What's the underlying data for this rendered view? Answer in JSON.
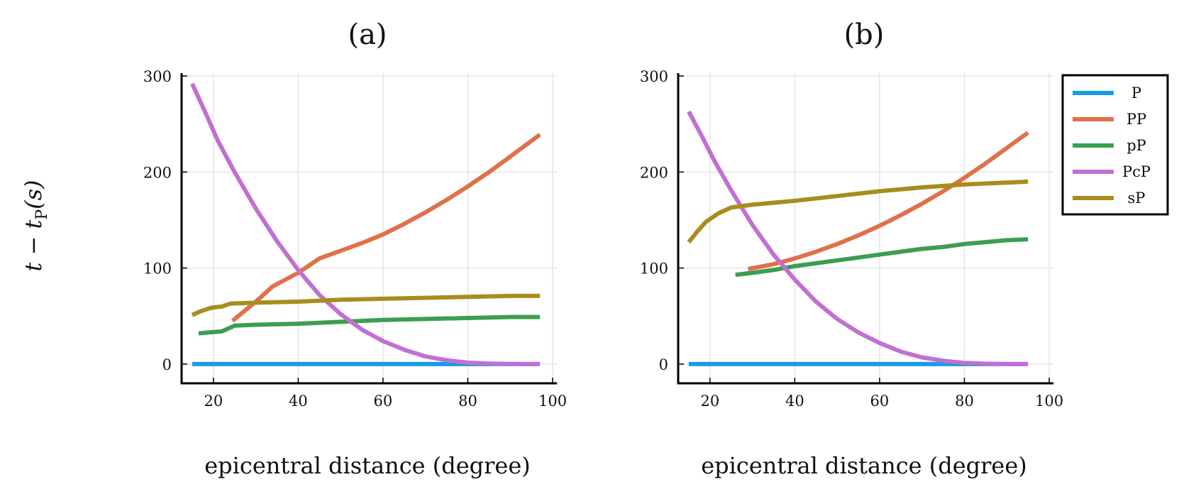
{
  "figure": {
    "ylabel": "t − t",
    "ylabel_sub": "P",
    "ylabel_suffix": "(s)"
  },
  "chart_data": [
    {
      "type": "line",
      "title": "(a)",
      "xlabel": "epicentral distance (degree)",
      "xlim": [
        12.5,
        101
      ],
      "ylim": [
        -20,
        303
      ],
      "xticks": [
        20,
        40,
        60,
        80,
        100
      ],
      "yticks": [
        0,
        100,
        200,
        300
      ],
      "grid": true,
      "legend": null,
      "series": [
        {
          "name": "P",
          "color": "#179ce9",
          "x": [
            15,
            97
          ],
          "y": [
            0,
            0
          ]
        },
        {
          "name": "PP",
          "color": "#e1704a",
          "x": [
            24.5,
            30,
            34,
            40,
            45,
            50,
            55,
            60,
            65,
            70,
            75,
            80,
            85,
            90,
            97
          ],
          "y": [
            45,
            65,
            81,
            95,
            110,
            118,
            126,
            135,
            146,
            158,
            171,
            185,
            200,
            216,
            239
          ]
        },
        {
          "name": "pP",
          "color": "#3c9e4f",
          "x": [
            16.5,
            19,
            22,
            25,
            30,
            40,
            50,
            60,
            70,
            80,
            90,
            97
          ],
          "y": [
            32,
            33,
            34,
            40,
            41,
            42,
            44,
            46,
            47,
            48,
            49,
            49
          ]
        },
        {
          "name": "PcP",
          "color": "#c170d2",
          "x": [
            15,
            18,
            21,
            25,
            30,
            35,
            40,
            45,
            50,
            55,
            60,
            65,
            70,
            75,
            80,
            85,
            90,
            95,
            97
          ],
          "y": [
            292,
            263,
            233,
            200,
            162,
            128,
            98,
            72,
            52,
            36,
            24,
            15,
            8,
            4,
            1.5,
            0.6,
            0.2,
            0,
            0
          ]
        },
        {
          "name": "sP",
          "color": "#a88d1d",
          "x": [
            15,
            17,
            19,
            20,
            22,
            24,
            30,
            40,
            50,
            60,
            70,
            80,
            90,
            97
          ],
          "y": [
            51,
            55,
            58,
            59,
            60,
            63,
            64,
            65,
            67,
            68,
            69,
            70,
            71,
            71
          ]
        }
      ]
    },
    {
      "type": "line",
      "title": "(b)",
      "xlabel": "epicentral distance (degree)",
      "xlim": [
        12.5,
        101
      ],
      "ylim": [
        -20,
        303
      ],
      "xticks": [
        20,
        40,
        60,
        80,
        100
      ],
      "yticks": [
        0,
        100,
        200,
        300
      ],
      "grid": true,
      "legend": "top-right",
      "series": [
        {
          "name": "P",
          "color": "#179ce9",
          "x": [
            15,
            95
          ],
          "y": [
            0,
            0
          ]
        },
        {
          "name": "PP",
          "color": "#e1704a",
          "x": [
            29,
            35,
            40,
            45,
            50,
            55,
            60,
            65,
            70,
            75,
            80,
            85,
            90,
            95
          ],
          "y": [
            99,
            104,
            110,
            117,
            125,
            134,
            144,
            155,
            167,
            180,
            194,
            209,
            225,
            241
          ]
        },
        {
          "name": "pP",
          "color": "#3c9e4f",
          "x": [
            26,
            30,
            35,
            40,
            45,
            50,
            55,
            60,
            65,
            70,
            75,
            80,
            85,
            90,
            95
          ],
          "y": [
            93,
            95,
            98,
            102,
            105,
            108,
            111,
            114,
            117,
            120,
            122,
            125,
            127,
            129,
            130
          ]
        },
        {
          "name": "PcP",
          "color": "#c170d2",
          "x": [
            15,
            18,
            21,
            25,
            30,
            35,
            40,
            45,
            50,
            55,
            60,
            65,
            70,
            75,
            80,
            85,
            90,
            95
          ],
          "y": [
            263,
            238,
            212,
            181,
            145,
            114,
            88,
            65,
            47,
            33,
            22,
            13,
            7,
            3.5,
            1.2,
            0.4,
            0,
            0
          ]
        },
        {
          "name": "sP",
          "color": "#a88d1d",
          "x": [
            15,
            17,
            19,
            22,
            25,
            30,
            40,
            50,
            60,
            70,
            80,
            90,
            95
          ],
          "y": [
            127,
            138,
            148,
            157,
            163,
            166,
            170,
            175,
            180,
            184,
            187,
            189,
            190
          ]
        }
      ]
    }
  ]
}
